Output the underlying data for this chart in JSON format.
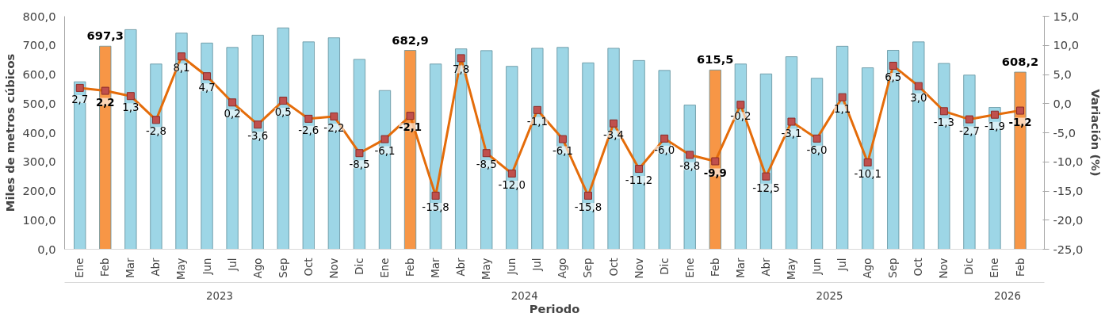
{
  "chart_data": {
    "type": "bar",
    "xlabel": "Periodo",
    "ylabel": "Miles de metros cúbicos",
    "y2label": "Variación (%)",
    "categories": [
      "Ene",
      "Feb",
      "Mar",
      "Abr",
      "May",
      "Jun",
      "Jul",
      "Ago",
      "Sep",
      "Oct",
      "Nov",
      "Dic",
      "Ene",
      "Feb",
      "Mar",
      "Abr",
      "May",
      "Jun",
      "Jul",
      "Ago",
      "Sep",
      "Oct",
      "Nov",
      "Dic",
      "Ene",
      "Feb",
      "Mar",
      "Abr",
      "May",
      "Jun",
      "Jul",
      "Ago",
      "Sep",
      "Oct",
      "Nov",
      "Dic",
      "Ene",
      "Feb"
    ],
    "annotations": [
      "2023",
      "2024",
      "2025",
      "2026"
    ],
    "ylim": [
      0,
      800
    ],
    "yticks": [
      {
        "value": 0,
        "label": "0,0"
      },
      {
        "value": 100,
        "label": "100,0"
      },
      {
        "value": 200,
        "label": "200,0"
      },
      {
        "value": 300,
        "label": "300,0"
      },
      {
        "value": 400,
        "label": "400,0"
      },
      {
        "value": 500,
        "label": "500,0"
      },
      {
        "value": 600,
        "label": "600,0"
      },
      {
        "value": 700,
        "label": "700,0"
      },
      {
        "value": 800,
        "label": "800,0"
      }
    ],
    "y2lim": [
      -25,
      15
    ],
    "y2ticks": [
      {
        "value": -25,
        "label": "-25,0"
      },
      {
        "value": -20,
        "label": "-20,0"
      },
      {
        "value": -15,
        "label": "-15,0"
      },
      {
        "value": -10,
        "label": "-10,0"
      },
      {
        "value": -5,
        "label": "-5,0"
      },
      {
        "value": 0,
        "label": "0,0"
      },
      {
        "value": 5,
        "label": "5,0"
      },
      {
        "value": 10,
        "label": "10,0"
      },
      {
        "value": 15,
        "label": "15,0"
      }
    ],
    "grid": false,
    "series": [
      {
        "colors": [
          "#9dd6e6",
          "#f79646",
          "#9dd6e6",
          "#9dd6e6",
          "#9dd6e6",
          "#9dd6e6",
          "#9dd6e6",
          "#9dd6e6",
          "#9dd6e6",
          "#9dd6e6",
          "#9dd6e6",
          "#9dd6e6",
          "#9dd6e6",
          "#f79646",
          "#9dd6e6",
          "#9dd6e6",
          "#9dd6e6",
          "#9dd6e6",
          "#9dd6e6",
          "#9dd6e6",
          "#9dd6e6",
          "#9dd6e6",
          "#9dd6e6",
          "#9dd6e6",
          "#9dd6e6",
          "#f79646",
          "#9dd6e6",
          "#9dd6e6",
          "#9dd6e6",
          "#9dd6e6",
          "#9dd6e6",
          "#9dd6e6",
          "#9dd6e6",
          "#9dd6e6",
          "#9dd6e6",
          "#9dd6e6",
          "#9dd6e6",
          "#f79646"
        ],
        "values": [
          575,
          697.3,
          754,
          636,
          742,
          708,
          693,
          735,
          760,
          712,
          726,
          652,
          545,
          682.9,
          636,
          688,
          682,
          628,
          690,
          693,
          640,
          690,
          648,
          614,
          495,
          615.5,
          636,
          602,
          661,
          587,
          697,
          623,
          683,
          712,
          638,
          598,
          487,
          608.2
        ],
        "value_labels": [
          null,
          "697,3",
          null,
          null,
          null,
          null,
          null,
          null,
          null,
          null,
          null,
          null,
          null,
          "682,9",
          null,
          null,
          null,
          null,
          null,
          null,
          null,
          null,
          null,
          null,
          null,
          "615,5",
          null,
          null,
          null,
          null,
          null,
          null,
          null,
          null,
          null,
          null,
          null,
          "608,2"
        ]
      },
      {
        "type": "line",
        "axis": "y2",
        "color": "#e46c0a",
        "marker": "square",
        "line_style": "solid",
        "values": [
          2.7,
          2.2,
          1.3,
          -2.8,
          8.1,
          4.7,
          0.2,
          -3.6,
          0.5,
          -2.6,
          -2.2,
          -8.5,
          -6.1,
          -2.1,
          -15.8,
          7.8,
          -8.5,
          -12.0,
          -1.1,
          -6.1,
          -15.8,
          -3.4,
          -11.2,
          -6.0,
          -8.8,
          -9.9,
          -0.2,
          -12.5,
          -3.1,
          -6.0,
          1.1,
          -10.1,
          6.5,
          3.0,
          -1.3,
          -2.7,
          -1.9,
          -1.2
        ],
        "value_labels": [
          "2,7",
          "2,2",
          "1,3",
          "-2,8",
          "8,1",
          "4,7",
          "0,2",
          "-3,6",
          "0,5",
          "-2,6",
          "-2,2",
          "-8,5",
          "-6,1",
          "-2,1",
          "-15,8",
          "7,8",
          "-8,5",
          "-12,0",
          "-1,1",
          "-6,1",
          "-15,8",
          "-3,4",
          "-11,2",
          "-6,0",
          "-8,8",
          "-9,9",
          "-0,2",
          "-12,5",
          "-3,1",
          "-6,0",
          "1,1",
          "-10,1",
          "6,5",
          "3,0",
          "-1,3",
          "-2,7",
          "-1,9",
          "-1,2"
        ]
      }
    ]
  }
}
